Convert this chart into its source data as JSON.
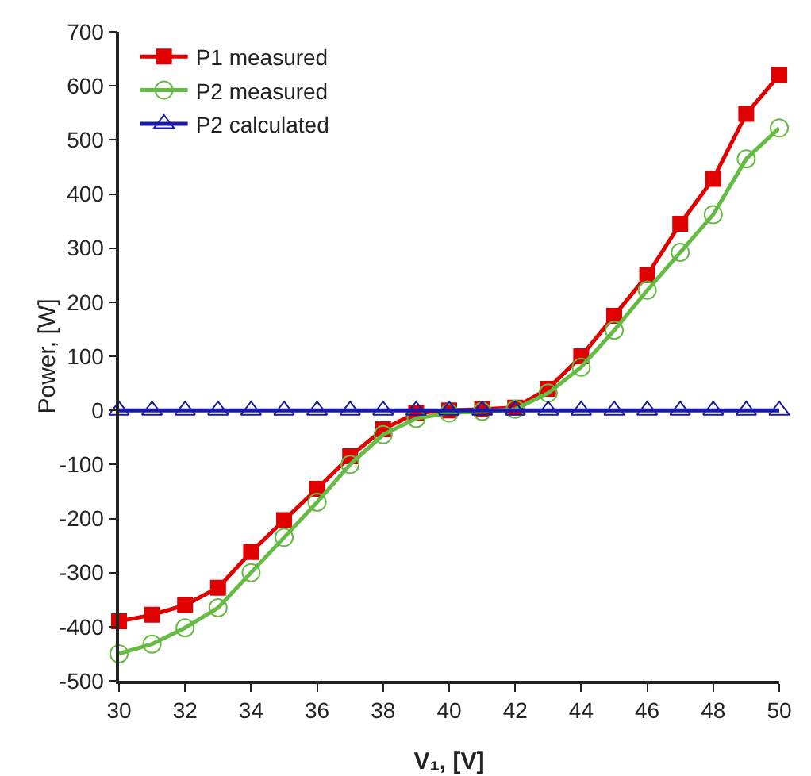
{
  "chart_data": {
    "type": "line",
    "xlabel": "V₁, [V]",
    "ylabel": "Power, [W]",
    "x": [
      30,
      31,
      32,
      33,
      34,
      35,
      36,
      37,
      38,
      39,
      40,
      41,
      42,
      43,
      44,
      45,
      46,
      47,
      48,
      49,
      50
    ],
    "xlim": [
      30,
      50
    ],
    "xticks": [
      30,
      32,
      34,
      36,
      38,
      40,
      42,
      44,
      46,
      48,
      50
    ],
    "ylim": [
      -500,
      700
    ],
    "yticks": [
      -500,
      -400,
      -300,
      -200,
      -100,
      0,
      100,
      200,
      300,
      400,
      500,
      600,
      700
    ],
    "grid": false,
    "legend": "top left",
    "series": [
      {
        "name": "P1 measured",
        "color": "#e00000",
        "marker": "square",
        "values": [
          -390,
          -378,
          -360,
          -328,
          -262,
          -203,
          -145,
          -85,
          -35,
          -5,
          0,
          2,
          5,
          40,
          100,
          175,
          250,
          345,
          428,
          548,
          620
        ]
      },
      {
        "name": "P2 measured",
        "color": "#66bb44",
        "marker": "circle",
        "values": [
          -450,
          -432,
          -402,
          -365,
          -300,
          -235,
          -170,
          -100,
          -45,
          -15,
          -5,
          -2,
          2,
          32,
          80,
          148,
          222,
          292,
          362,
          465,
          522
        ]
      },
      {
        "name": "P2 calculated",
        "color": "#1a1aaa",
        "marker": "triangle",
        "values": [
          0,
          0,
          0,
          0,
          0,
          0,
          0,
          0,
          0,
          0,
          0,
          0,
          0,
          0,
          0,
          0,
          0,
          0,
          0,
          0,
          0
        ]
      }
    ]
  }
}
